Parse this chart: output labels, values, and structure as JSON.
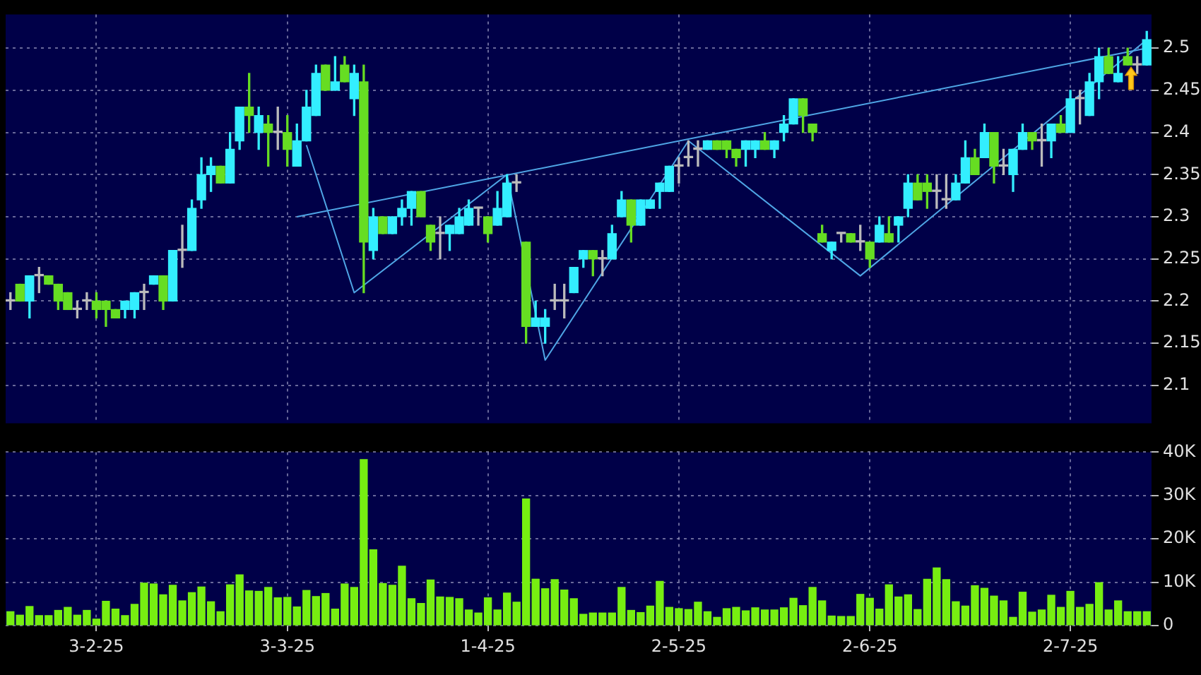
{
  "chart_data": [
    {
      "type": "candlestick",
      "categories": [
        null,
        null,
        null,
        null,
        null,
        null,
        null,
        null,
        null,
        null,
        null,
        null,
        null,
        null,
        null,
        null,
        null,
        null,
        null,
        null,
        null,
        null,
        null,
        null,
        null,
        null,
        null,
        null,
        null,
        null,
        null,
        null,
        null,
        null,
        null,
        null,
        null,
        null,
        null,
        null,
        null,
        null,
        null,
        null,
        null,
        null,
        null,
        null,
        null,
        null,
        null,
        null,
        null,
        null,
        null,
        null,
        null,
        null,
        null,
        null,
        null,
        null,
        null,
        null,
        null,
        null,
        null,
        null,
        null,
        null,
        null,
        null,
        null,
        null,
        null,
        null,
        null,
        null,
        null,
        null,
        null,
        null,
        null,
        null,
        null,
        null,
        null,
        null,
        null,
        null,
        null,
        null,
        null,
        null,
        null,
        null,
        null,
        null,
        null,
        null,
        null,
        null,
        null,
        null,
        null,
        null,
        null,
        null,
        null,
        null,
        null,
        null,
        null,
        null,
        null,
        null,
        null,
        null,
        null,
        null
      ],
      "ohlc": [
        [
          2.2,
          2.21,
          2.19,
          2.2
        ],
        [
          2.22,
          2.22,
          2.2,
          2.2
        ],
        [
          2.2,
          2.23,
          2.18,
          2.23
        ],
        [
          2.23,
          2.24,
          2.21,
          2.23
        ],
        [
          2.23,
          2.23,
          2.22,
          2.22
        ],
        [
          2.22,
          2.22,
          2.19,
          2.2
        ],
        [
          2.21,
          2.21,
          2.19,
          2.19
        ],
        [
          2.19,
          2.2,
          2.18,
          2.19
        ],
        [
          2.2,
          2.21,
          2.19,
          2.2
        ],
        [
          2.2,
          2.21,
          2.18,
          2.19
        ],
        [
          2.2,
          2.2,
          2.17,
          2.19
        ],
        [
          2.19,
          2.19,
          2.18,
          2.18
        ],
        [
          2.19,
          2.2,
          2.18,
          2.2
        ],
        [
          2.19,
          2.21,
          2.18,
          2.21
        ],
        [
          2.21,
          2.22,
          2.19,
          2.21
        ],
        [
          2.22,
          2.23,
          2.22,
          2.23
        ],
        [
          2.23,
          2.23,
          2.19,
          2.2
        ],
        [
          2.2,
          2.26,
          2.2,
          2.26
        ],
        [
          2.26,
          2.29,
          2.24,
          2.26
        ],
        [
          2.26,
          2.32,
          2.26,
          2.31
        ],
        [
          2.32,
          2.37,
          2.31,
          2.35
        ],
        [
          2.35,
          2.37,
          2.33,
          2.36
        ],
        [
          2.36,
          2.36,
          2.34,
          2.34
        ],
        [
          2.34,
          2.4,
          2.34,
          2.38
        ],
        [
          2.39,
          2.43,
          2.38,
          2.43
        ],
        [
          2.43,
          2.47,
          2.4,
          2.42
        ],
        [
          2.4,
          2.43,
          2.38,
          2.42
        ],
        [
          2.41,
          2.42,
          2.36,
          2.4
        ],
        [
          2.4,
          2.43,
          2.38,
          2.4
        ],
        [
          2.4,
          2.42,
          2.36,
          2.38
        ],
        [
          2.36,
          2.41,
          2.36,
          2.39
        ],
        [
          2.39,
          2.45,
          2.39,
          2.43
        ],
        [
          2.42,
          2.48,
          2.42,
          2.47
        ],
        [
          2.48,
          2.48,
          2.45,
          2.45
        ],
        [
          2.45,
          2.49,
          2.45,
          2.46
        ],
        [
          2.48,
          2.49,
          2.46,
          2.46
        ],
        [
          2.44,
          2.48,
          2.42,
          2.47
        ],
        [
          2.46,
          2.48,
          2.21,
          2.27
        ],
        [
          2.26,
          2.31,
          2.25,
          2.3
        ],
        [
          2.3,
          2.3,
          2.28,
          2.28
        ],
        [
          2.28,
          2.3,
          2.28,
          2.3
        ],
        [
          2.3,
          2.32,
          2.29,
          2.31
        ],
        [
          2.31,
          2.33,
          2.29,
          2.33
        ],
        [
          2.33,
          2.33,
          2.3,
          2.3
        ],
        [
          2.29,
          2.29,
          2.26,
          2.27
        ],
        [
          2.28,
          2.3,
          2.25,
          2.28
        ],
        [
          2.28,
          2.29,
          2.26,
          2.29
        ],
        [
          2.28,
          2.31,
          2.28,
          2.3
        ],
        [
          2.29,
          2.32,
          2.29,
          2.31
        ],
        [
          2.31,
          2.31,
          2.29,
          2.31
        ],
        [
          2.3,
          2.3,
          2.27,
          2.28
        ],
        [
          2.29,
          2.33,
          2.29,
          2.31
        ],
        [
          2.3,
          2.35,
          2.3,
          2.34
        ],
        [
          2.34,
          2.35,
          2.33,
          2.34
        ],
        [
          2.27,
          2.27,
          2.15,
          2.17
        ],
        [
          2.17,
          2.2,
          2.17,
          2.18
        ],
        [
          2.17,
          2.19,
          2.15,
          2.18
        ],
        [
          2.2,
          2.22,
          2.19,
          2.2
        ],
        [
          2.2,
          2.22,
          2.18,
          2.2
        ],
        [
          2.21,
          2.24,
          2.21,
          2.24
        ],
        [
          2.25,
          2.26,
          2.24,
          2.26
        ],
        [
          2.26,
          2.26,
          2.23,
          2.25
        ],
        [
          2.25,
          2.26,
          2.23,
          2.25
        ],
        [
          2.25,
          2.29,
          2.25,
          2.28
        ],
        [
          2.3,
          2.33,
          2.3,
          2.32
        ],
        [
          2.32,
          2.32,
          2.27,
          2.29
        ],
        [
          2.29,
          2.32,
          2.29,
          2.32
        ],
        [
          2.31,
          2.32,
          2.31,
          2.32
        ],
        [
          2.33,
          2.34,
          2.31,
          2.34
        ],
        [
          2.33,
          2.36,
          2.33,
          2.36
        ],
        [
          2.36,
          2.37,
          2.34,
          2.36
        ],
        [
          2.37,
          2.39,
          2.36,
          2.37
        ],
        [
          2.38,
          2.39,
          2.36,
          2.38
        ],
        [
          2.38,
          2.39,
          2.38,
          2.39
        ],
        [
          2.39,
          2.39,
          2.38,
          2.38
        ],
        [
          2.39,
          2.39,
          2.37,
          2.38
        ],
        [
          2.38,
          2.38,
          2.36,
          2.37
        ],
        [
          2.38,
          2.39,
          2.36,
          2.39
        ],
        [
          2.38,
          2.39,
          2.37,
          2.39
        ],
        [
          2.39,
          2.4,
          2.38,
          2.38
        ],
        [
          2.38,
          2.39,
          2.37,
          2.39
        ],
        [
          2.4,
          2.42,
          2.39,
          2.41
        ],
        [
          2.41,
          2.44,
          2.41,
          2.44
        ],
        [
          2.44,
          2.44,
          2.4,
          2.42
        ],
        [
          2.41,
          2.41,
          2.39,
          2.4
        ],
        [
          2.28,
          2.29,
          2.27,
          2.27
        ],
        [
          2.26,
          2.27,
          2.25,
          2.27
        ],
        [
          2.28,
          2.28,
          2.27,
          2.28
        ],
        [
          2.28,
          2.28,
          2.27,
          2.27
        ],
        [
          2.27,
          2.29,
          2.26,
          2.27
        ],
        [
          2.27,
          2.27,
          2.24,
          2.25
        ],
        [
          2.27,
          2.3,
          2.27,
          2.29
        ],
        [
          2.28,
          2.3,
          2.27,
          2.27
        ],
        [
          2.29,
          2.3,
          2.27,
          2.3
        ],
        [
          2.31,
          2.35,
          2.3,
          2.34
        ],
        [
          2.34,
          2.35,
          2.32,
          2.32
        ],
        [
          2.34,
          2.35,
          2.31,
          2.33
        ],
        [
          2.33,
          2.35,
          2.31,
          2.33
        ],
        [
          2.32,
          2.35,
          2.31,
          2.32
        ],
        [
          2.32,
          2.35,
          2.32,
          2.34
        ],
        [
          2.34,
          2.39,
          2.34,
          2.37
        ],
        [
          2.37,
          2.38,
          2.35,
          2.35
        ],
        [
          2.37,
          2.41,
          2.37,
          2.4
        ],
        [
          2.4,
          2.4,
          2.34,
          2.36
        ],
        [
          2.36,
          2.38,
          2.35,
          2.36
        ],
        [
          2.35,
          2.38,
          2.33,
          2.38
        ],
        [
          2.38,
          2.41,
          2.38,
          2.4
        ],
        [
          2.4,
          2.4,
          2.38,
          2.39
        ],
        [
          2.39,
          2.41,
          2.36,
          2.39
        ],
        [
          2.39,
          2.41,
          2.37,
          2.41
        ],
        [
          2.41,
          2.42,
          2.4,
          2.4
        ],
        [
          2.4,
          2.45,
          2.4,
          2.44
        ],
        [
          2.44,
          2.45,
          2.41,
          2.44
        ],
        [
          2.42,
          2.47,
          2.42,
          2.46
        ],
        [
          2.46,
          2.5,
          2.44,
          2.49
        ],
        [
          2.49,
          2.5,
          2.47,
          2.47
        ],
        [
          2.46,
          2.49,
          2.46,
          2.47
        ],
        [
          2.49,
          2.5,
          2.48,
          2.48
        ],
        [
          2.48,
          2.49,
          2.47,
          2.48
        ],
        [
          2.48,
          2.52,
          2.48,
          2.51
        ]
      ],
      "colors": [
        "#bbbbbb",
        "#66dd22",
        "#33eeff",
        "#bbbbbb",
        "#66dd22",
        "#66dd22",
        "#66dd22",
        "#bbbbbb",
        "#bbbbbb",
        "#66dd22",
        "#66dd22",
        "#66dd22",
        "#33eeff",
        "#33eeff",
        "#bbbbbb",
        "#33eeff",
        "#66dd22",
        "#33eeff",
        "#bbbbbb",
        "#33eeff",
        "#33eeff",
        "#33eeff",
        "#66dd22",
        "#33eeff",
        "#33eeff",
        "#66dd22",
        "#33eeff",
        "#66dd22",
        "#bbbbbb",
        "#66dd22",
        "#33eeff",
        "#33eeff",
        "#33eeff",
        "#66dd22",
        "#33eeff",
        "#66dd22",
        "#33eeff",
        "#66dd22",
        "#33eeff",
        "#66dd22",
        "#33eeff",
        "#33eeff",
        "#33eeff",
        "#66dd22",
        "#66dd22",
        "#bbbbbb",
        "#33eeff",
        "#33eeff",
        "#33eeff",
        "#bbbbbb",
        "#66dd22",
        "#33eeff",
        "#33eeff",
        "#bbbbbb",
        "#66dd22",
        "#33eeff",
        "#33eeff",
        "#bbbbbb",
        "#bbbbbb",
        "#33eeff",
        "#33eeff",
        "#66dd22",
        "#bbbbbb",
        "#33eeff",
        "#33eeff",
        "#66dd22",
        "#33eeff",
        "#33eeff",
        "#33eeff",
        "#33eeff",
        "#bbbbbb",
        "#bbbbbb",
        "#bbbbbb",
        "#33eeff",
        "#66dd22",
        "#66dd22",
        "#66dd22",
        "#33eeff",
        "#33eeff",
        "#66dd22",
        "#33eeff",
        "#33eeff",
        "#33eeff",
        "#66dd22",
        "#66dd22",
        "#66dd22",
        "#33eeff",
        "#bbbbbb",
        "#66dd22",
        "#bbbbbb",
        "#66dd22",
        "#33eeff",
        "#66dd22",
        "#33eeff",
        "#33eeff",
        "#66dd22",
        "#66dd22",
        "#bbbbbb",
        "#bbbbbb",
        "#33eeff",
        "#33eeff",
        "#66dd22",
        "#33eeff",
        "#66dd22",
        "#bbbbbb",
        "#33eeff",
        "#33eeff",
        "#66dd22",
        "#bbbbbb",
        "#33eeff",
        "#66dd22",
        "#33eeff",
        "#bbbbbb",
        "#33eeff",
        "#33eeff",
        "#66dd22",
        "#33eeff",
        "#66dd22",
        "#bbbbbb",
        "#33eeff"
      ],
      "series": [
        {
          "type": "line",
          "color": "#4fa6e6",
          "values": [
            null,
            null,
            null,
            null,
            null,
            null,
            null,
            null,
            null,
            null,
            null,
            null,
            null,
            null,
            null,
            null,
            null,
            null,
            null,
            null,
            null,
            null,
            null,
            null,
            null,
            null,
            null,
            null,
            null,
            null,
            2.3,
            null,
            null,
            null,
            null,
            null,
            null,
            null,
            null,
            null,
            null,
            null,
            null,
            null,
            null,
            null,
            null,
            null,
            null,
            null,
            null,
            null,
            null,
            null,
            null,
            null,
            null,
            null,
            null,
            null,
            null,
            null,
            null,
            null,
            null,
            null,
            null,
            null,
            null,
            null,
            null,
            null,
            null,
            null,
            null,
            null,
            null,
            null,
            null,
            null,
            null,
            null,
            null,
            null,
            null,
            null,
            null,
            null,
            null,
            null,
            null,
            null,
            null,
            null,
            null,
            null,
            null,
            null,
            null,
            null,
            null,
            null,
            null,
            null,
            null,
            null,
            null,
            null,
            null,
            null,
            null,
            null,
            null,
            null,
            null,
            null,
            null,
            null,
            null,
            2.5
          ]
        },
        {
          "type": "line",
          "color": "#4fa6e6",
          "values": [
            null,
            null,
            null,
            null,
            null,
            null,
            null,
            null,
            null,
            null,
            null,
            null,
            null,
            null,
            null,
            null,
            null,
            null,
            null,
            null,
            null,
            null,
            null,
            null,
            null,
            null,
            null,
            null,
            null,
            null,
            null,
            2.385,
            null,
            null,
            null,
            null,
            2.21,
            null,
            null,
            null,
            null,
            null,
            null,
            null,
            null,
            null,
            null,
            null,
            null,
            null,
            null,
            null,
            2.35,
            null,
            null,
            null,
            2.13,
            null,
            null,
            null,
            null,
            null,
            null,
            null,
            null,
            null,
            null,
            null,
            null,
            null,
            null,
            2.39,
            null,
            null,
            null,
            null,
            null,
            null,
            null,
            null,
            null,
            null,
            null,
            null,
            null,
            null,
            null,
            null,
            null,
            2.23,
            null,
            null,
            null,
            null,
            null,
            null,
            null,
            null,
            null,
            null,
            null,
            null,
            null,
            null,
            null,
            null,
            null,
            null,
            null,
            null,
            null,
            null,
            null,
            null,
            null,
            null,
            null,
            null,
            null,
            2.51
          ]
        }
      ],
      "ylim": [
        2.055,
        2.54
      ],
      "yticks": [
        2.1,
        2.15,
        2.2,
        2.25,
        2.3,
        2.35,
        2.4,
        2.45,
        2.5
      ],
      "grid": true,
      "tick_labels": "y"
    },
    {
      "type": "bar",
      "categories": [
        null,
        null,
        null,
        null,
        null,
        null,
        null,
        null,
        null,
        "3-2-25",
        null,
        null,
        null,
        null,
        null,
        null,
        null,
        null,
        null,
        null,
        null,
        null,
        null,
        null,
        null,
        null,
        null,
        null,
        null,
        "3-3-25",
        null,
        null,
        null,
        null,
        null,
        null,
        null,
        null,
        null,
        null,
        null,
        null,
        null,
        null,
        null,
        null,
        null,
        null,
        null,
        null,
        "1-4-25",
        null,
        null,
        null,
        null,
        null,
        null,
        null,
        null,
        null,
        null,
        null,
        null,
        null,
        null,
        null,
        null,
        null,
        null,
        null,
        "2-5-25",
        null,
        null,
        null,
        null,
        null,
        null,
        null,
        null,
        null,
        null,
        null,
        null,
        null,
        null,
        null,
        null,
        null,
        null,
        null,
        "2-6-25",
        null,
        null,
        null,
        null,
        null,
        null,
        null,
        null,
        null,
        null,
        null,
        null,
        null,
        null,
        null,
        null,
        null,
        null,
        null,
        null,
        "2-7-25",
        null,
        null,
        null,
        null,
        null,
        null,
        null,
        null
      ],
      "values": [
        3200,
        2400,
        4400,
        2300,
        2300,
        3500,
        4200,
        2400,
        3500,
        1500,
        5600,
        3800,
        2300,
        4900,
        9800,
        9600,
        7100,
        9300,
        5700,
        7600,
        8900,
        5500,
        3200,
        9400,
        11700,
        8000,
        7900,
        8800,
        6400,
        6500,
        4300,
        8100,
        6700,
        7400,
        3800,
        9600,
        8800,
        38300,
        17500,
        9700,
        9300,
        13700,
        6200,
        5100,
        10500,
        6600,
        6500,
        6200,
        3600,
        2900,
        6400,
        3600,
        7500,
        5400,
        29200,
        10700,
        8500,
        10600,
        8200,
        6200,
        2600,
        2900,
        2900,
        2900,
        8800,
        3500,
        3000,
        4500,
        10200,
        4200,
        3900,
        3700,
        5400,
        3200,
        1900,
        3900,
        4200,
        3400,
        4100,
        3600,
        3600,
        4100,
        6300,
        4600,
        8800,
        5700,
        2200,
        2100,
        2100,
        7200,
        6300,
        3800,
        9400,
        6600,
        7100,
        3700,
        10700,
        13300,
        10600,
        5500,
        4500,
        9200,
        8600,
        6800,
        5700,
        1900,
        7700,
        3100,
        3600,
        7000,
        4200,
        7900,
        4200,
        4900,
        9900,
        3600,
        5700,
        3200,
        3200,
        3200
      ],
      "color": "#77ee11",
      "ylim": [
        0,
        40000
      ],
      "yticks": [
        0,
        {
          "value": 10000,
          "label": "10K"
        },
        {
          "value": 20000,
          "label": "20K"
        },
        {
          "value": 30000,
          "label": "30K"
        },
        {
          "value": 40000,
          "label": "40K"
        }
      ],
      "grid": true
    }
  ]
}
